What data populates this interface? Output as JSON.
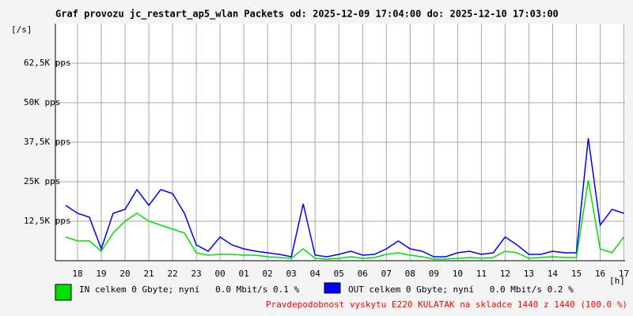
{
  "chart_data": {
    "type": "line",
    "title": "Graf provozu jc_restart_ap5_wlan Packets od: 2025-12-09 17:04:00 do: 2025-12-10 17:03:00",
    "y_label": "[/s]",
    "x_label": "[h]",
    "xlim": [
      17.067,
      41.05
    ],
    "xticks": [
      18,
      19,
      20,
      21,
      22,
      23,
      {
        "value": 24,
        "label": "00"
      },
      {
        "value": 25,
        "label": "01"
      },
      {
        "value": 26,
        "label": "02"
      },
      {
        "value": 27,
        "label": "03"
      },
      {
        "value": 28,
        "label": "04"
      },
      {
        "value": 29,
        "label": "05"
      },
      {
        "value": 30,
        "label": "06"
      },
      {
        "value": 31,
        "label": "07"
      },
      {
        "value": 32,
        "label": "08"
      },
      {
        "value": 33,
        "label": "09"
      },
      {
        "value": 34,
        "label": "10"
      },
      {
        "value": 35,
        "label": "11"
      },
      {
        "value": 36,
        "label": "12"
      },
      {
        "value": 37,
        "label": "13"
      },
      {
        "value": 38,
        "label": "14"
      },
      {
        "value": 39,
        "label": "15"
      },
      {
        "value": 40,
        "label": "16"
      },
      {
        "value": 41,
        "label": "17"
      }
    ],
    "ylim": [
      0,
      75000
    ],
    "yticks": [
      {
        "value": 12500,
        "label": "12,5K pps"
      },
      {
        "value": 25000,
        "label": "25K pps"
      },
      {
        "value": 37500,
        "label": "37,5K pps"
      },
      {
        "value": 50000,
        "label": "50K pps"
      },
      {
        "value": 62500,
        "label": "62,5K pps"
      }
    ],
    "grid": true,
    "x": [
      17.5,
      18,
      18.5,
      19,
      19.5,
      20,
      20.5,
      21,
      21.5,
      22,
      22.5,
      23,
      23.5,
      24,
      24.5,
      25,
      25.5,
      26,
      26.5,
      27,
      27.5,
      28,
      28.5,
      29,
      29.5,
      30,
      30.5,
      31,
      31.5,
      32,
      32.5,
      33,
      33.5,
      34,
      34.5,
      35,
      35.5,
      36,
      36.5,
      37,
      37.5,
      38,
      38.5,
      39,
      39.5,
      40,
      40.5,
      41
    ],
    "series": [
      {
        "name": "OUT celkem 0 Gbyte; nyní   0.0 Mbit/s 0.2 %",
        "color": "#0000ff",
        "values": [
          17500,
          15000,
          13750,
          3750,
          15000,
          16250,
          22500,
          17500,
          22500,
          21250,
          15000,
          5000,
          3000,
          7500,
          5000,
          3750,
          3000,
          2500,
          2000,
          1250,
          18000,
          1750,
          1250,
          2000,
          3000,
          1750,
          2000,
          3750,
          6250,
          3750,
          3000,
          1250,
          1250,
          2500,
          3000,
          2000,
          2500,
          7500,
          5000,
          2000,
          2000,
          3000,
          2500,
          2500,
          38750,
          11250,
          16250,
          15000
        ]
      },
      {
        "name": "IN celkem 0 Gbyte; nyní   0.0 Mbit/s 0.1 %",
        "color": "#00e000",
        "values": [
          7500,
          6250,
          6250,
          3000,
          8750,
          12500,
          15000,
          12500,
          11250,
          10000,
          8750,
          2500,
          1750,
          2000,
          2000,
          1750,
          1750,
          1250,
          1000,
          750,
          3750,
          750,
          500,
          750,
          1250,
          750,
          1000,
          2000,
          2500,
          1750,
          1250,
          500,
          500,
          750,
          1000,
          750,
          1000,
          3000,
          2500,
          750,
          1000,
          1250,
          1000,
          1000,
          25500,
          3750,
          2500,
          7500
        ]
      }
    ],
    "footer": "Pravdepodobnost vyskytu E220 KULATAK na skladce 1440 z 1440 (100.0 %)"
  }
}
